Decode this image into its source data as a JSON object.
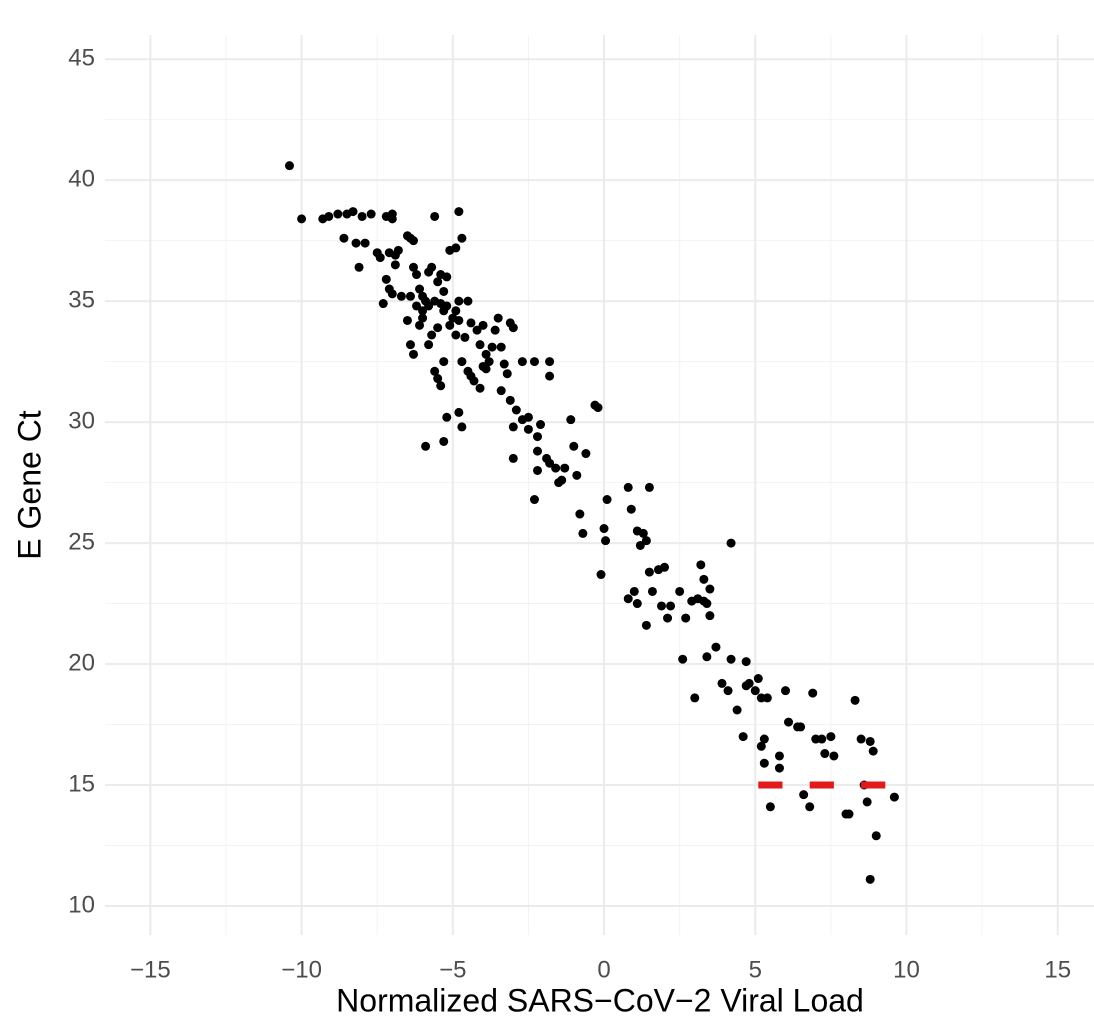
{
  "chart_data": {
    "type": "scatter",
    "x_label": "Normalized SARS−CoV−2 Viral Load",
    "y_label": "E Gene Ct",
    "xlim": [
      -16.5,
      16.2
    ],
    "ylim": [
      8.8,
      46
    ],
    "xticks": [
      {
        "value": -15,
        "label": "−15"
      },
      {
        "value": -10,
        "label": "−10"
      },
      {
        "value": -5,
        "label": "−5"
      },
      0,
      5,
      10,
      15
    ],
    "yticks": [
      10,
      15,
      20,
      25,
      30,
      35,
      40,
      45
    ],
    "minor_xticks": [
      -12.5,
      -7.5,
      -2.5,
      2.5,
      7.5,
      12.5
    ],
    "minor_yticks": [
      12.5,
      17.5,
      22.5,
      27.5,
      32.5,
      37.5,
      42.5
    ],
    "grid": true,
    "series": [
      {
        "color": "#000000",
        "x": [
          -10.4,
          -10,
          -9.3,
          -9.1,
          -8.8,
          -8.6,
          -8.5,
          -8.3,
          -8.2,
          -8.1,
          -8,
          -7.9,
          -7.7,
          -7.5,
          -7.4,
          -7.2,
          -7,
          -7,
          -7.1,
          -6.9,
          -6.8,
          -7.2,
          -7.1,
          -7,
          -6.9,
          -6.7,
          -7.3,
          -6.5,
          -6.4,
          -6.3,
          -6.3,
          -6.2,
          -6.1,
          -6,
          -5.9,
          -5.8,
          -5.7,
          -5.6,
          -5.5,
          -5.4,
          -5.3,
          -5.2,
          -5.1,
          -4.9,
          -4.8,
          -4.7,
          -4.8,
          -4.9,
          -5,
          -5.2,
          -5.4,
          -5.6,
          -5.8,
          -6,
          -6.2,
          -6.4,
          -6.5,
          -6.4,
          -6.3,
          -6.1,
          -6,
          -5.8,
          -5.7,
          -5.5,
          -5.3,
          -5.1,
          -4.9,
          -4.8,
          -4.6,
          -4.5,
          -4.4,
          -4.2,
          -4.1,
          -4,
          -3.9,
          -3.8,
          -3.7,
          -3.6,
          -3.5,
          -3.4,
          -3.3,
          -3.2,
          -3.1,
          -3,
          -2.7,
          -2.3,
          -1.8,
          -1.8,
          -4.7,
          -4.5,
          -4.4,
          -4.3,
          -4.1,
          -4,
          -3.9,
          -5.3,
          -5.5,
          -5.6,
          -5.4,
          -5.2,
          -4.8,
          -4.7,
          -5.3,
          -5.9,
          -3.4,
          -3.1,
          -2.9,
          -2.7,
          -2.5,
          -2.2,
          -2.2,
          -3,
          -3,
          -2.5,
          -2.1,
          -1.9,
          -1.8,
          -1.6,
          -1.5,
          -1.3,
          -1,
          -1.1,
          -0.3,
          -0.6,
          -0.9,
          -1.4,
          -2.2,
          -2.3,
          -0.8,
          -0.7,
          0.1,
          0,
          0.05,
          -0.1,
          0.8,
          0.9,
          1.1,
          1.2,
          1.4,
          1.5,
          1.3,
          0.8,
          1,
          1.1,
          1.4,
          1.5,
          1.6,
          1.8,
          1.9,
          2,
          2.1,
          2.5,
          2.6,
          2.7,
          2.9,
          3.1,
          3.2,
          3.3,
          3.4,
          3.5,
          3.3,
          3.7,
          3,
          3.4,
          3.9,
          4.1,
          4.2,
          4.2,
          4.4,
          4.6,
          4.7,
          4.8,
          5,
          5.1,
          5.2,
          5.3,
          5.2,
          5.4,
          5.5,
          5.3,
          5.8,
          5.8,
          6,
          6.1,
          6.4,
          6.5,
          6.6,
          6.8,
          6.9,
          7,
          7.2,
          7.3,
          7.5,
          7.6,
          8,
          8.1,
          8.3,
          8.5,
          8.7,
          8.8,
          8.9,
          8.8,
          9,
          9.6,
          8.6,
          3.5,
          2.2,
          4.7,
          -0.2
        ],
        "values": [
          40.6,
          38.4,
          38.4,
          38.5,
          38.6,
          37.6,
          38.6,
          38.7,
          37.4,
          36.4,
          38.5,
          37.4,
          38.6,
          37,
          36.8,
          38.5,
          38.6,
          38.4,
          37,
          36.9,
          37.1,
          35.9,
          35.5,
          35.3,
          36.5,
          35.2,
          34.9,
          37.7,
          37.6,
          37.5,
          36.4,
          36.1,
          35.5,
          35.2,
          35,
          36.2,
          36.4,
          38.5,
          35.8,
          36.1,
          35.4,
          36,
          37.1,
          37.2,
          38.7,
          37.6,
          35,
          34.6,
          34.3,
          34.8,
          34.9,
          35,
          34.8,
          34.6,
          34.8,
          35.2,
          34.2,
          33.2,
          32.8,
          34,
          34.3,
          33.2,
          33.6,
          33.9,
          34.6,
          34,
          33.6,
          34.2,
          33.5,
          35,
          34.1,
          33.8,
          33.2,
          34,
          32.8,
          32.5,
          33.1,
          33.8,
          34.3,
          33.1,
          32.4,
          32,
          34.1,
          33.9,
          32.5,
          32.5,
          32.5,
          31.9,
          32.5,
          32.1,
          31.9,
          31.7,
          31.4,
          32.3,
          32.2,
          32.5,
          31.8,
          32.1,
          31.5,
          30.2,
          30.4,
          29.8,
          29.2,
          29,
          31.3,
          30.9,
          30.5,
          30.1,
          29.7,
          29.4,
          28.8,
          29.8,
          28.5,
          30.2,
          29.9,
          28.5,
          28.3,
          28.1,
          27.5,
          28.1,
          29,
          30.1,
          30.7,
          28.7,
          27.8,
          27.6,
          28,
          26.8,
          26.2,
          25.4,
          26.8,
          25.6,
          25.1,
          23.7,
          27.3,
          26.4,
          25.5,
          24.9,
          25.1,
          27.3,
          25.4,
          22.7,
          23,
          22.5,
          21.6,
          23.8,
          23,
          23.9,
          22.4,
          24,
          21.9,
          23,
          20.2,
          21.9,
          22.6,
          22.7,
          24.1,
          23.5,
          22.5,
          23.1,
          22.6,
          20.7,
          18.6,
          20.3,
          19.2,
          18.9,
          25,
          20.2,
          18.1,
          17,
          20.1,
          19.2,
          18.9,
          19.4,
          18.6,
          16.9,
          16.6,
          18.6,
          14.1,
          15.9,
          16.2,
          15.7,
          18.9,
          17.6,
          17.4,
          17.4,
          14.6,
          14.1,
          18.8,
          16.9,
          16.9,
          16.3,
          17,
          16.2,
          13.8,
          13.8,
          18.5,
          16.9,
          14.3,
          16.8,
          16.4,
          11.1,
          12.9,
          14.5,
          15,
          22,
          22.4,
          19.1,
          30.6
        ]
      }
    ],
    "segments": {
      "color": "#e31a1c",
      "y": 15,
      "x": [
        [
          5.1,
          5.9
        ],
        [
          6.8,
          7.6
        ],
        [
          8.5,
          9.3
        ]
      ]
    }
  }
}
